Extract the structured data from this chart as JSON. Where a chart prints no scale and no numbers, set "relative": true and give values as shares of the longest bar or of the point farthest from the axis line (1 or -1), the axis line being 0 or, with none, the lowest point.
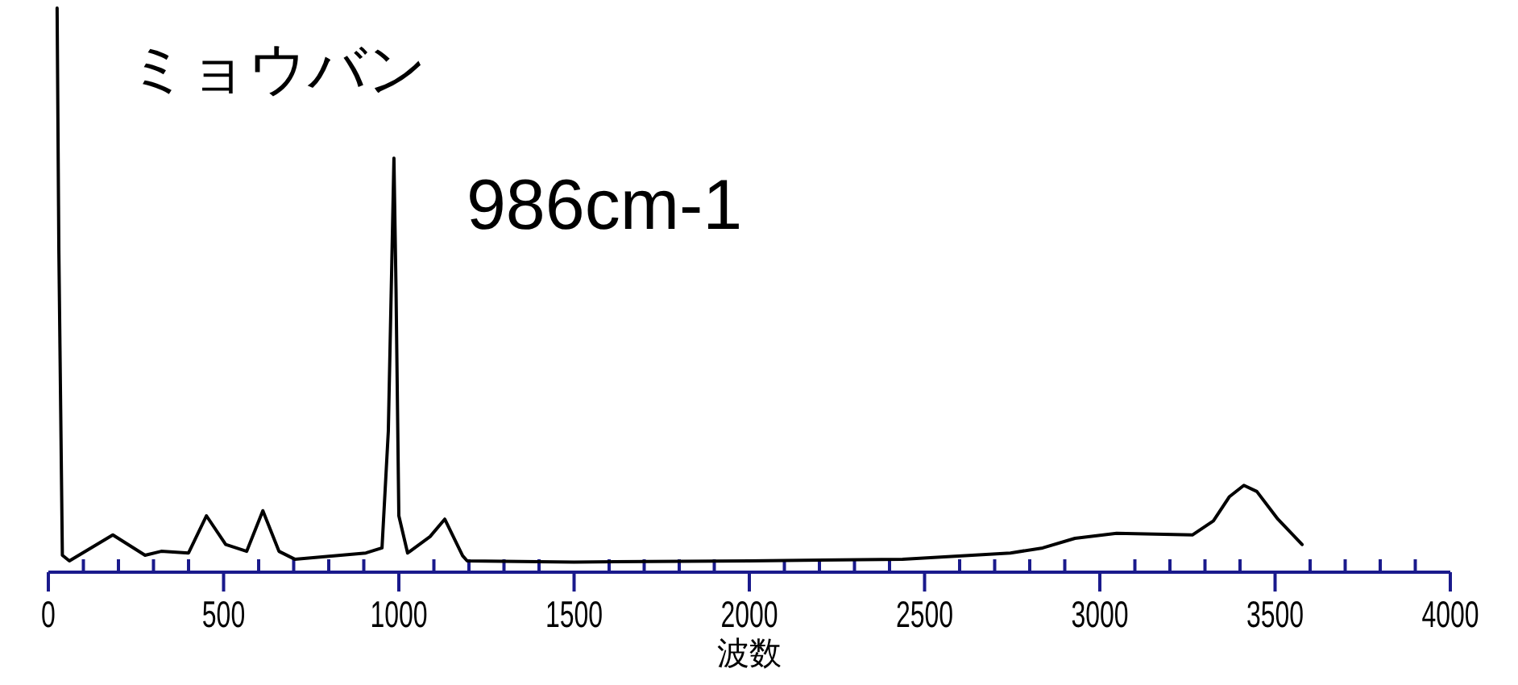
{
  "chart_data": {
    "type": "line",
    "title": "ミョウバン",
    "xlabel": "波数",
    "relative": true,
    "xlim": [
      0,
      4000
    ],
    "xticks": [
      0,
      {
        "value": 100,
        "label": null
      },
      {
        "value": 200,
        "label": null
      },
      {
        "value": 300,
        "label": null
      },
      {
        "value": 400,
        "label": null
      },
      500,
      {
        "value": 600,
        "label": null
      },
      {
        "value": 700,
        "label": null
      },
      {
        "value": 800,
        "label": null
      },
      {
        "value": 900,
        "label": null
      },
      1000,
      {
        "value": 1100,
        "label": null
      },
      {
        "value": 1200,
        "label": null
      },
      {
        "value": 1300,
        "label": null
      },
      {
        "value": 1400,
        "label": null
      },
      1500,
      {
        "value": 1600,
        "label": null
      },
      {
        "value": 1700,
        "label": null
      },
      {
        "value": 1800,
        "label": null
      },
      {
        "value": 1900,
        "label": null
      },
      2000,
      {
        "value": 2100,
        "label": null
      },
      {
        "value": 2200,
        "label": null
      },
      {
        "value": 2300,
        "label": null
      },
      {
        "value": 2400,
        "label": null
      },
      2500,
      {
        "value": 2600,
        "label": null
      },
      {
        "value": 2700,
        "label": null
      },
      {
        "value": 2800,
        "label": null
      },
      {
        "value": 2900,
        "label": null
      },
      3000,
      {
        "value": 3100,
        "label": null
      },
      {
        "value": 3200,
        "label": null
      },
      {
        "value": 3300,
        "label": null
      },
      {
        "value": 3400,
        "label": null
      },
      3500,
      {
        "value": 3600,
        "label": null
      },
      {
        "value": 3700,
        "label": null
      },
      {
        "value": 3800,
        "label": null
      },
      {
        "value": 3900,
        "label": null
      },
      4000
    ],
    "annotations": [
      {
        "text": "986cm-1",
        "x": 986,
        "y": 0.734
      }
    ],
    "series": [
      {
        "color": "#000000",
        "x": [
          25,
          30,
          40,
          60,
          184,
          276,
          322,
          400,
          451,
          506,
          566,
          612,
          658,
          703,
          906,
          952,
          970,
          980,
          986,
          992,
          1000,
          1025,
          1089,
          1131,
          1182,
          1195,
          1500,
          2000,
          2437,
          2745,
          2837,
          2929,
          3048,
          3264,
          3324,
          3370,
          3411,
          3448,
          3508,
          3577
        ],
        "values": [
          1.0,
          0.57,
          0.03,
          0.02,
          0.066,
          0.03,
          0.037,
          0.034,
          0.1,
          0.049,
          0.037,
          0.109,
          0.037,
          0.023,
          0.034,
          0.043,
          0.25,
          0.55,
          0.734,
          0.5,
          0.1,
          0.034,
          0.063,
          0.094,
          0.029,
          0.02,
          0.018,
          0.02,
          0.023,
          0.034,
          0.043,
          0.06,
          0.069,
          0.066,
          0.091,
          0.134,
          0.154,
          0.143,
          0.094,
          0.049
        ]
      }
    ]
  }
}
